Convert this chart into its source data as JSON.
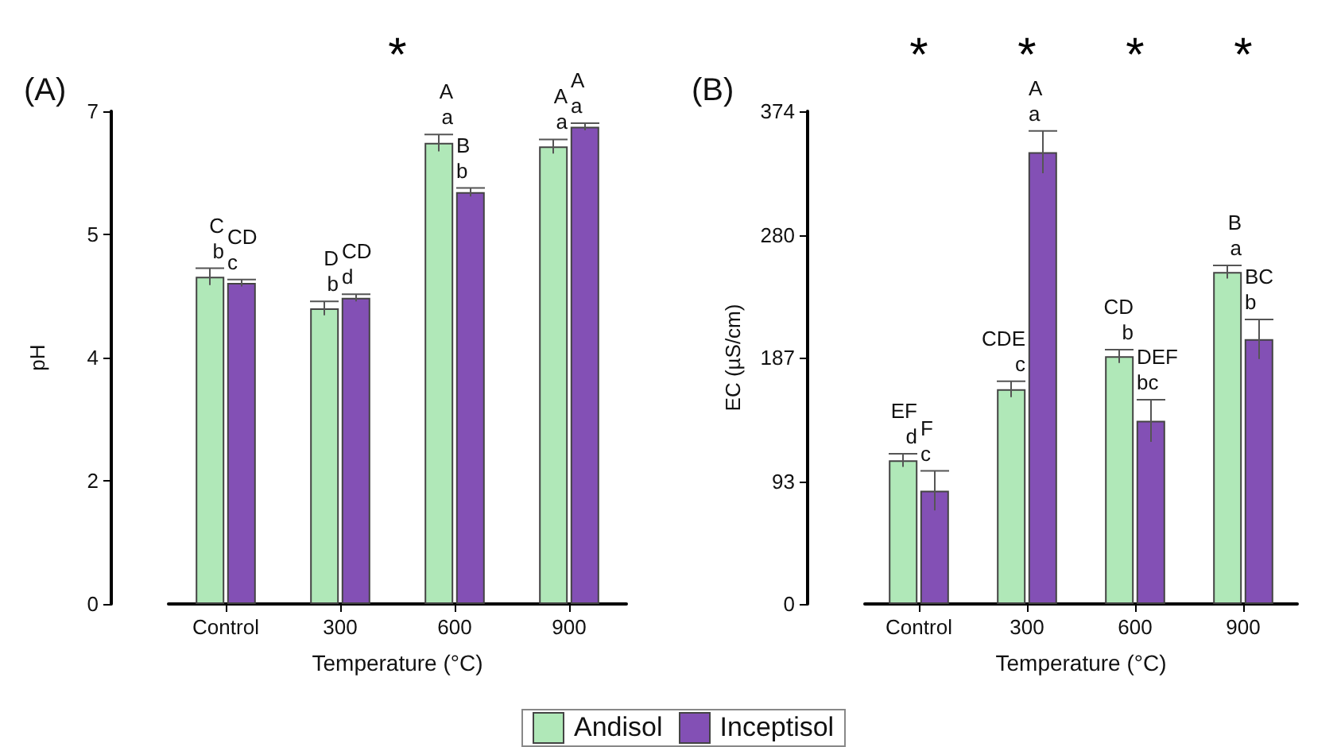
{
  "chart_data": [
    {
      "type": "bar",
      "title": "(A)",
      "xlabel": "Temperature (°C)",
      "ylabel": "pH",
      "categories": [
        "Control",
        "300",
        "600",
        "900"
      ],
      "series": [
        {
          "name": "Andisol",
          "color": "#b0e8b8",
          "values": [
            4.65,
            4.2,
            6.55,
            6.5
          ],
          "errors": [
            0.12,
            0.1,
            0.12,
            0.1
          ],
          "value_labels": [
            "C\nb",
            "D\nb",
            "A\na",
            "A\na"
          ]
        },
        {
          "name": "Inceptisol",
          "color": "#8350b5",
          "values": [
            4.56,
            4.35,
            5.85,
            6.78
          ],
          "errors": [
            0.05,
            0.05,
            0.06,
            0.05
          ],
          "value_labels": [
            "CD\nc",
            "CD\nd",
            "B\nb",
            "A\na"
          ]
        }
      ],
      "ylim": [
        0,
        7
      ],
      "yticks": [
        0,
        {
          "value": 1.75,
          "label": "2"
        },
        {
          "value": 3.5,
          "label": "4"
        },
        {
          "value": 5.25,
          "label": "5"
        },
        7
      ],
      "annotations": [
        "*"
      ],
      "grid": false,
      "legend": "bottom"
    },
    {
      "type": "bar",
      "title": "(B)",
      "xlabel": "Temperature (°C)",
      "ylabel": "EC (µS/cm)",
      "categories": [
        "Control",
        "300",
        "600",
        "900"
      ],
      "series": [
        {
          "color": "#b0e8b8",
          "values": [
            109,
            163,
            188,
            252
          ],
          "errors": [
            5,
            6,
            5,
            5
          ],
          "value_labels": [
            "EF\nd",
            "CDE\nc",
            "CD\nb",
            "B\na"
          ]
        },
        {
          "color": "#8350b5",
          "values": [
            86,
            343,
            139,
            201
          ],
          "errors": [
            15,
            16,
            16,
            15
          ],
          "value_labels": [
            "F\nc",
            "A\na",
            "DEF\nbc",
            "BC\nb"
          ]
        }
      ],
      "ylim": [
        0,
        374
      ],
      "yticks": [
        0,
        93,
        187,
        280,
        374
      ],
      "annotations": [
        "*",
        "*",
        "*",
        "*"
      ],
      "grid": false
    }
  ]
}
